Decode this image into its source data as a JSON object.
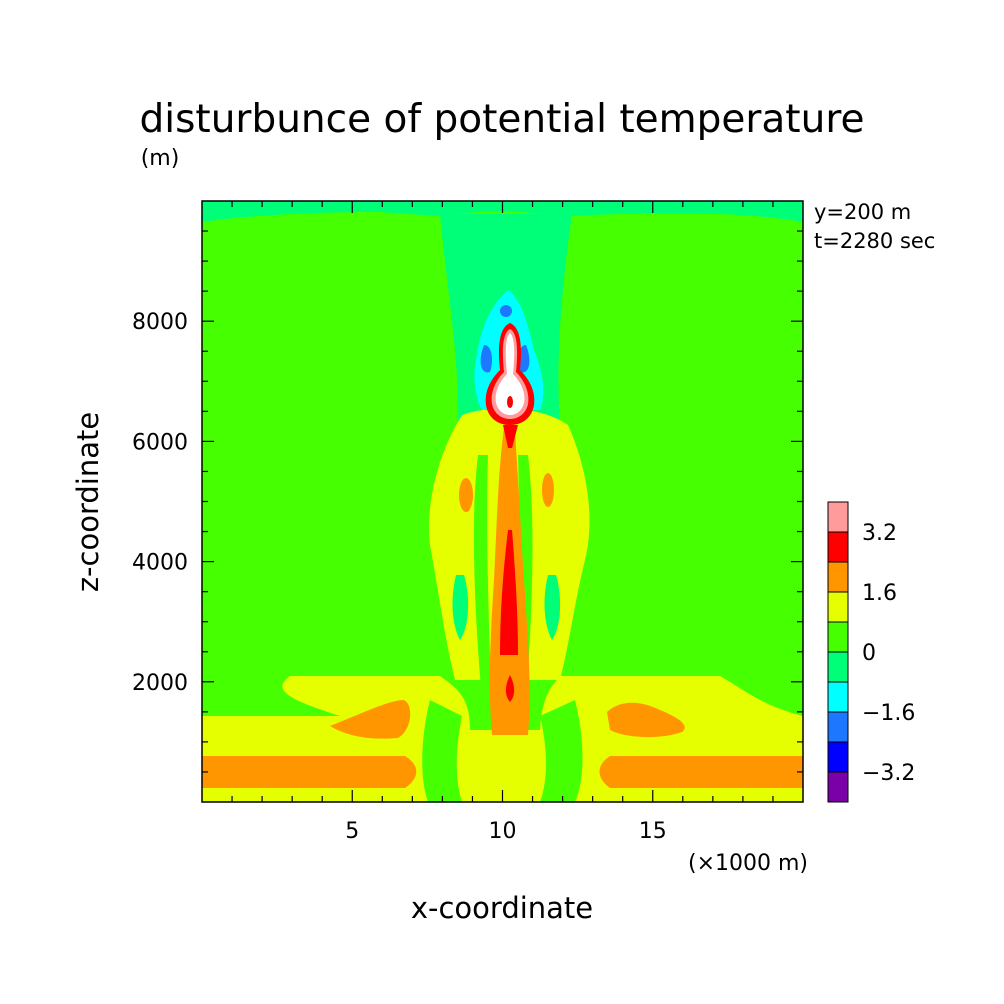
{
  "chart_data": {
    "type": "heatmap",
    "subtype": "filled-contour",
    "title": "disturbunce of potential temperature",
    "ylabel": "z-coordinate",
    "yunit": "(m)",
    "xlabel": "x-coordinate",
    "xunit": "(×1000 m)",
    "annotations": [
      "y=200 m",
      "t=2280 sec"
    ],
    "xlim": [
      0,
      20
    ],
    "ylim": [
      0,
      10000
    ],
    "x_ticks": [
      5,
      10,
      15
    ],
    "y_ticks": [
      2000,
      4000,
      6000,
      8000
    ],
    "grid": false,
    "colorbar": {
      "levels": [
        -4.0,
        -3.2,
        -2.4,
        -1.6,
        -0.8,
        0,
        0.8,
        1.6,
        2.4,
        3.2,
        4.0
      ],
      "labels": [
        "3.2",
        "1.6",
        "0",
        "−1.6",
        "−3.2"
      ],
      "colors": [
        "#7a00a8",
        "#0000ff",
        "#1e78ff",
        "#00ffff",
        "#00ff78",
        "#46ff00",
        "#e6ff00",
        "#ff9600",
        "#ff0000",
        "#ff9b9b"
      ]
    },
    "contour_regions": [
      {
        "level": 0.4,
        "description": "background",
        "color": "#46ff00",
        "x": [
          0,
          20
        ],
        "z": [
          0,
          10000
        ]
      },
      {
        "level": -0.4,
        "description": "upper-background band",
        "color": "#00ff78",
        "x": [
          0,
          20
        ],
        "z": [
          9600,
          10000
        ]
      },
      {
        "level": -0.4,
        "description": "upper central plume envelope",
        "color": "#00ff78",
        "x": [
          8.3,
          12.3
        ],
        "z": [
          6000,
          10000
        ]
      },
      {
        "level": -1.2,
        "description": "upper cap",
        "color": "#00ffff",
        "x": [
          9.2,
          11.5
        ],
        "z": [
          6700,
          8500
        ]
      },
      {
        "level": -2.0,
        "description": "upper cap core",
        "color": "#1e78ff",
        "x": [
          9.7,
          10.3
        ],
        "z": [
          7200,
          8300
        ]
      },
      {
        "level": 1.2,
        "description": "mid plume envelope",
        "color": "#e6ff00",
        "x": [
          7.5,
          12.8
        ],
        "z": [
          1200,
          6400
        ]
      },
      {
        "level": 2.0,
        "description": "central column",
        "color": "#ff9600",
        "x": [
          9.6,
          10.9
        ],
        "z": [
          1100,
          6600
        ]
      },
      {
        "level": 2.8,
        "description": "central column core",
        "color": "#ff0000",
        "x": [
          9.9,
          10.5
        ],
        "z": [
          1900,
          4600
        ]
      },
      {
        "level": 4.0,
        "description": "thermal head",
        "color": "#ff9b9b",
        "x": [
          9.6,
          10.9
        ],
        "z": [
          6200,
          7800
        ]
      },
      {
        "level": 1.2,
        "description": "lower layer",
        "color": "#e6ff00",
        "x": [
          0,
          20
        ],
        "z": [
          0,
          2200
        ]
      },
      {
        "level": 2.0,
        "description": "near-surface layer",
        "color": "#ff9600",
        "x": [
          0,
          7.2
        ],
        "z": [
          300,
          900
        ]
      },
      {
        "level": 2.0,
        "description": "near-surface layer",
        "color": "#ff9600",
        "x": [
          13.4,
          20
        ],
        "z": [
          300,
          900
        ]
      }
    ]
  }
}
